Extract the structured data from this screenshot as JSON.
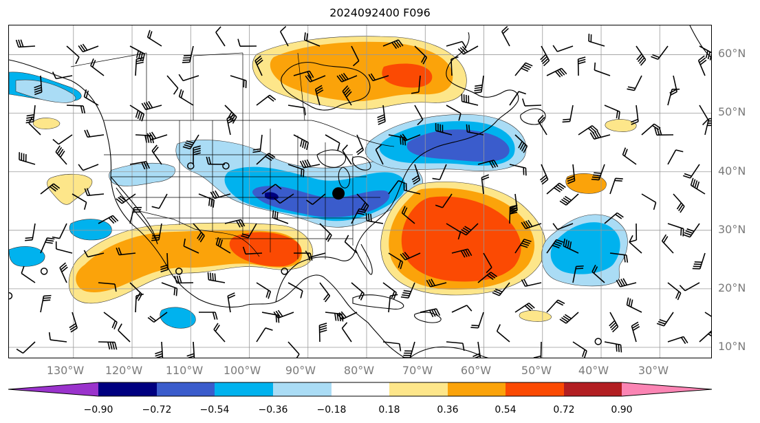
{
  "title": "2024092400 F096",
  "lat_labels": [
    "60°N",
    "50°N",
    "40°N",
    "30°N",
    "20°N",
    "10°N"
  ],
  "lon_labels": [
    "130°W",
    "120°W",
    "110°W",
    "100°W",
    "90°W",
    "80°W",
    "70°W",
    "60°W",
    "50°W",
    "40°W",
    "30°W"
  ],
  "colorbar": {
    "ticks": [
      "−0.90",
      "−0.72",
      "−0.54",
      "−0.36",
      "−0.18",
      "0.18",
      "0.36",
      "0.54",
      "0.72",
      "0.90"
    ],
    "colors": [
      "#9a33cc",
      "#000080",
      "#3a5ccc",
      "#00b2ee",
      "#aadcf5",
      "#ffffff",
      "#fde68a",
      "#fba30a",
      "#fb4a03",
      "#b21e22",
      "#fb85b4"
    ]
  },
  "map": {
    "extent": {
      "lon_min": -141,
      "lon_max": -21,
      "lat_min": 8,
      "lat_max": 65
    },
    "storm_center": {
      "lon": -84.8,
      "lat": 36.3
    },
    "open_circles": [
      {
        "lon": -110,
        "lat": 41
      },
      {
        "lon": -104,
        "lat": 41
      },
      {
        "lon": -135,
        "lat": 23
      },
      {
        "lon": -112,
        "lat": 23
      },
      {
        "lon": -94,
        "lat": 23
      },
      {
        "lon": -141,
        "lat": 18.8
      },
      {
        "lon": -40.5,
        "lat": 11
      }
    ]
  }
}
